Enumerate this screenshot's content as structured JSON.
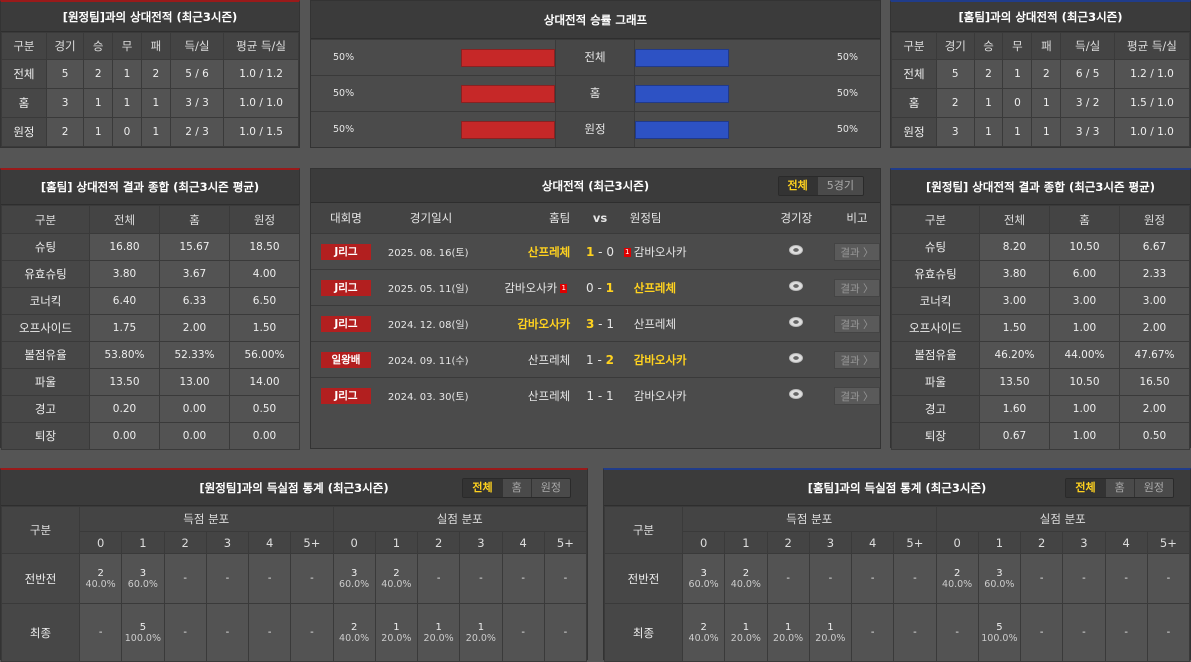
{
  "away_record": {
    "title": "[원정팀]과의 상대전적 (최근3시즌)",
    "headers": [
      "구분",
      "경기",
      "승",
      "무",
      "패",
      "득/실",
      "평균 득/실"
    ],
    "rows": [
      [
        "전체",
        "5",
        "2",
        "1",
        "2",
        "5 / 6",
        "1.0 / 1.2"
      ],
      [
        "홈",
        "3",
        "1",
        "1",
        "1",
        "3 / 3",
        "1.0 / 1.0"
      ],
      [
        "원정",
        "2",
        "1",
        "0",
        "1",
        "2 / 3",
        "1.0 / 1.5"
      ]
    ]
  },
  "graph": {
    "title": "상대전적 승률 그래프",
    "rows": [
      {
        "label": "전체",
        "left": "50%",
        "right": "50%",
        "left_value": 50,
        "right_value": 50
      },
      {
        "label": "홈",
        "left": "50%",
        "right": "50%",
        "left_value": 50,
        "right_value": 50
      },
      {
        "label": "원정",
        "left": "50%",
        "right": "50%",
        "left_value": 50,
        "right_value": 50
      }
    ],
    "colors": {
      "home": "#c62828",
      "away": "#2d52c4"
    }
  },
  "home_record": {
    "title": "[홈팀]과의 상대전적 (최근3시즌)",
    "headers": [
      "구분",
      "경기",
      "승",
      "무",
      "패",
      "득/실",
      "평균 득/실"
    ],
    "rows": [
      [
        "전체",
        "5",
        "2",
        "1",
        "2",
        "6 / 5",
        "1.2 / 1.0"
      ],
      [
        "홈",
        "2",
        "1",
        "0",
        "1",
        "3 / 2",
        "1.5 / 1.0"
      ],
      [
        "원정",
        "3",
        "1",
        "1",
        "1",
        "3 / 3",
        "1.0 / 1.0"
      ]
    ]
  },
  "home_summary": {
    "title": "[홈팀] 상대전적 결과 종합 (최근3시즌 평균)",
    "headers": [
      "구분",
      "전체",
      "홈",
      "원정"
    ],
    "rows": [
      [
        "슈팅",
        "16.80",
        "15.67",
        "18.50"
      ],
      [
        "유효슈팅",
        "3.80",
        "3.67",
        "4.00"
      ],
      [
        "코너킥",
        "6.40",
        "6.33",
        "6.50"
      ],
      [
        "오프사이드",
        "1.75",
        "2.00",
        "1.50"
      ],
      [
        "볼점유율",
        "53.80%",
        "52.33%",
        "56.00%"
      ],
      [
        "파울",
        "13.50",
        "13.00",
        "14.00"
      ],
      [
        "경고",
        "0.20",
        "0.00",
        "0.50"
      ],
      [
        "퇴장",
        "0.00",
        "0.00",
        "0.00"
      ]
    ]
  },
  "away_summary": {
    "title": "[원정팀] 상대전적 결과 종합 (최근3시즌 평균)",
    "headers": [
      "구분",
      "전체",
      "홈",
      "원정"
    ],
    "rows": [
      [
        "슈팅",
        "8.20",
        "10.50",
        "6.67"
      ],
      [
        "유효슈팅",
        "3.80",
        "6.00",
        "2.33"
      ],
      [
        "코너킥",
        "3.00",
        "3.00",
        "3.00"
      ],
      [
        "오프사이드",
        "1.50",
        "1.00",
        "2.00"
      ],
      [
        "볼점유율",
        "46.20%",
        "44.00%",
        "47.67%"
      ],
      [
        "파울",
        "13.50",
        "10.50",
        "16.50"
      ],
      [
        "경고",
        "1.60",
        "1.00",
        "2.00"
      ],
      [
        "퇴장",
        "0.67",
        "1.00",
        "0.50"
      ]
    ]
  },
  "matches": {
    "title": "상대전적 (최근3시즌)",
    "tabs": [
      "전체",
      "5경기"
    ],
    "headers": {
      "comp": "대회명",
      "date": "경기일시",
      "home": "홈팀",
      "vs": "vs",
      "away": "원정팀",
      "stadium": "경기장",
      "note": "비고"
    },
    "rows": [
      {
        "comp": "J리그",
        "date": "2025. 08. 16(토)",
        "home": "산프레체",
        "hs": "1",
        "as": "0",
        "away": "감바오사카",
        "winner": "home",
        "home_red": "",
        "away_red": "1",
        "result": "결과 〉"
      },
      {
        "comp": "J리그",
        "date": "2025. 05. 11(일)",
        "home": "감바오사카",
        "hs": "0",
        "as": "1",
        "away": "산프레체",
        "winner": "away",
        "home_red": "1",
        "away_red": "",
        "result": "결과 〉"
      },
      {
        "comp": "J리그",
        "date": "2024. 12. 08(일)",
        "home": "감바오사카",
        "hs": "3",
        "as": "1",
        "away": "산프레체",
        "winner": "home",
        "home_red": "",
        "away_red": "",
        "result": "결과 〉"
      },
      {
        "comp": "일왕배",
        "date": "2024. 09. 11(수)",
        "home": "산프레체",
        "hs": "1",
        "as": "2",
        "away": "감바오사카",
        "winner": "away",
        "home_red": "",
        "away_red": "",
        "result": "결과 〉"
      },
      {
        "comp": "J리그",
        "date": "2024. 03. 30(토)",
        "home": "산프레체",
        "hs": "1",
        "as": "1",
        "away": "감바오사카",
        "winner": "",
        "home_red": "",
        "away_red": "",
        "result": "결과 〉"
      }
    ]
  },
  "goals_away": {
    "title": "[원정팀]과의 득실점 통계 (최근3시즌)",
    "tabs": [
      "전체",
      "홈",
      "원정"
    ],
    "label": "구분",
    "scored": "득점 분포",
    "conceded": "실점 분포",
    "cols": [
      "0",
      "1",
      "2",
      "3",
      "4",
      "5+"
    ],
    "rows": [
      {
        "label": "전반전",
        "cells": [
          [
            "2",
            "40.0%"
          ],
          [
            "3",
            "60.0%"
          ],
          [
            "-",
            ""
          ],
          [
            "-",
            ""
          ],
          [
            "-",
            ""
          ],
          [
            "-",
            ""
          ],
          [
            "3",
            "60.0%"
          ],
          [
            "2",
            "40.0%"
          ],
          [
            "-",
            ""
          ],
          [
            "-",
            ""
          ],
          [
            "-",
            ""
          ],
          [
            "-",
            ""
          ]
        ]
      },
      {
        "label": "최종",
        "cells": [
          [
            "-",
            ""
          ],
          [
            "5",
            "100.0%"
          ],
          [
            "-",
            ""
          ],
          [
            "-",
            ""
          ],
          [
            "-",
            ""
          ],
          [
            "-",
            ""
          ],
          [
            "2",
            "40.0%"
          ],
          [
            "1",
            "20.0%"
          ],
          [
            "1",
            "20.0%"
          ],
          [
            "1",
            "20.0%"
          ],
          [
            "-",
            ""
          ],
          [
            "-",
            ""
          ]
        ]
      }
    ]
  },
  "goals_home": {
    "title": "[홈팀]과의 득실점 통계 (최근3시즌)",
    "tabs": [
      "전체",
      "홈",
      "원정"
    ],
    "label": "구분",
    "scored": "득점 분포",
    "conceded": "실점 분포",
    "cols": [
      "0",
      "1",
      "2",
      "3",
      "4",
      "5+"
    ],
    "rows": [
      {
        "label": "전반전",
        "cells": [
          [
            "3",
            "60.0%"
          ],
          [
            "2",
            "40.0%"
          ],
          [
            "-",
            ""
          ],
          [
            "-",
            ""
          ],
          [
            "-",
            ""
          ],
          [
            "-",
            ""
          ],
          [
            "2",
            "40.0%"
          ],
          [
            "3",
            "60.0%"
          ],
          [
            "-",
            ""
          ],
          [
            "-",
            ""
          ],
          [
            "-",
            ""
          ],
          [
            "-",
            ""
          ]
        ]
      },
      {
        "label": "최종",
        "cells": [
          [
            "2",
            "40.0%"
          ],
          [
            "1",
            "20.0%"
          ],
          [
            "1",
            "20.0%"
          ],
          [
            "1",
            "20.0%"
          ],
          [
            "-",
            ""
          ],
          [
            "-",
            ""
          ],
          [
            "-",
            ""
          ],
          [
            "5",
            "100.0%"
          ],
          [
            "-",
            ""
          ],
          [
            "-",
            ""
          ],
          [
            "-",
            ""
          ],
          [
            "-",
            ""
          ]
        ]
      }
    ]
  }
}
